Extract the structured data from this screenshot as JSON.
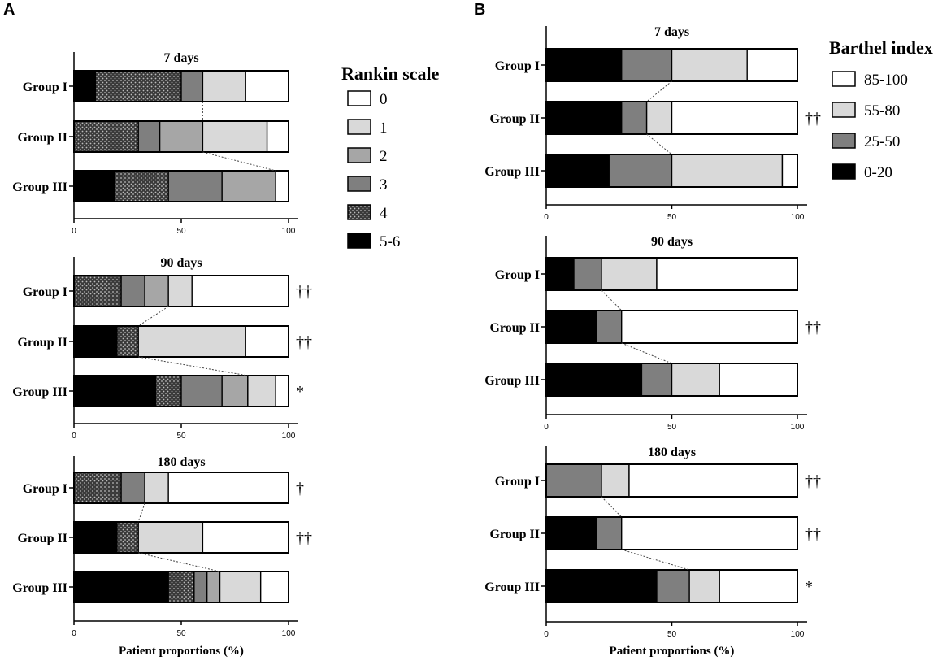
{
  "chart_data": [
    {
      "panel": "A",
      "type": "bar",
      "orientation": "horizontal",
      "stacked": true,
      "legend_title": "Rankin scale",
      "segment_order": [
        "5-6",
        "4",
        "3",
        "2",
        "1",
        "0"
      ],
      "legend_order": [
        "0",
        "1",
        "2",
        "3",
        "4",
        "5-6"
      ],
      "colors": {
        "5-6": "#000000",
        "4": "#3a3a3a",
        "3": "#7f7f7f",
        "2": "#a6a6a6",
        "1": "#d9d9d9",
        "0": "#ffffff"
      },
      "patterns": {
        "4": "dots"
      },
      "xlabel": "Patient proportions (%)",
      "xlim": [
        0,
        100
      ],
      "xticks": [
        "0",
        "50",
        "100"
      ],
      "subplots": [
        {
          "title": "7 days",
          "categories": [
            "Group I",
            "Group II",
            "Group III"
          ],
          "significance": [
            "",
            "",
            ""
          ],
          "series": [
            {
              "name": "5-6",
              "values": [
                10,
                0,
                19
              ]
            },
            {
              "name": "4",
              "values": [
                40,
                30,
                25
              ]
            },
            {
              "name": "3",
              "values": [
                10,
                10,
                25
              ]
            },
            {
              "name": "2",
              "values": [
                0,
                20,
                25
              ]
            },
            {
              "name": "1",
              "values": [
                20,
                30,
                0
              ]
            },
            {
              "name": "0",
              "values": [
                20,
                10,
                6
              ]
            }
          ]
        },
        {
          "title": "90 days",
          "categories": [
            "Group I",
            "Group II",
            "Group III"
          ],
          "significance": [
            "††",
            "††",
            "*"
          ],
          "series": [
            {
              "name": "5-6",
              "values": [
                0,
                20,
                38
              ]
            },
            {
              "name": "4",
              "values": [
                22,
                10,
                12
              ]
            },
            {
              "name": "3",
              "values": [
                11,
                0,
                19
              ]
            },
            {
              "name": "2",
              "values": [
                11,
                0,
                12
              ]
            },
            {
              "name": "1",
              "values": [
                11,
                50,
                13
              ]
            },
            {
              "name": "0",
              "values": [
                45,
                20,
                6
              ]
            }
          ]
        },
        {
          "title": "180 days",
          "categories": [
            "Group I",
            "Group II",
            "Group III"
          ],
          "significance": [
            "†",
            "††",
            ""
          ],
          "series": [
            {
              "name": "5-6",
              "values": [
                0,
                20,
                44
              ]
            },
            {
              "name": "4",
              "values": [
                22,
                10,
                12
              ]
            },
            {
              "name": "3",
              "values": [
                11,
                0,
                6
              ]
            },
            {
              "name": "2",
              "values": [
                0,
                0,
                6
              ]
            },
            {
              "name": "1",
              "values": [
                11,
                30,
                19
              ]
            },
            {
              "name": "0",
              "values": [
                56,
                40,
                13
              ]
            }
          ]
        }
      ]
    },
    {
      "panel": "B",
      "type": "bar",
      "orientation": "horizontal",
      "stacked": true,
      "legend_title": "Barthel index",
      "segment_order": [
        "0-20",
        "25-50",
        "55-80",
        "85-100"
      ],
      "legend_order": [
        "85-100",
        "55-80",
        "25-50",
        "0-20"
      ],
      "colors": {
        "0-20": "#000000",
        "25-50": "#7f7f7f",
        "55-80": "#d9d9d9",
        "85-100": "#ffffff"
      },
      "patterns": {},
      "xlabel": "Patient proportions (%)",
      "xlim": [
        0,
        100
      ],
      "xticks": [
        "0",
        "50",
        "100"
      ],
      "subplots": [
        {
          "title": "7 days",
          "categories": [
            "Group I",
            "Group II",
            "Group III"
          ],
          "significance": [
            "",
            "††",
            ""
          ],
          "series": [
            {
              "name": "0-20",
              "values": [
                30,
                30,
                25
              ]
            },
            {
              "name": "25-50",
              "values": [
                20,
                10,
                25
              ]
            },
            {
              "name": "55-80",
              "values": [
                30,
                10,
                44
              ]
            },
            {
              "name": "85-100",
              "values": [
                20,
                50,
                6
              ]
            }
          ]
        },
        {
          "title": "90 days",
          "categories": [
            "Group I",
            "Group II",
            "Group III"
          ],
          "significance": [
            "",
            "††",
            ""
          ],
          "series": [
            {
              "name": "0-20",
              "values": [
                11,
                20,
                38
              ]
            },
            {
              "name": "25-50",
              "values": [
                11,
                10,
                12
              ]
            },
            {
              "name": "55-80",
              "values": [
                22,
                0,
                19
              ]
            },
            {
              "name": "85-100",
              "values": [
                56,
                70,
                31
              ]
            }
          ]
        },
        {
          "title": "180 days",
          "categories": [
            "Group I",
            "Group II",
            "Group III"
          ],
          "significance": [
            "††",
            "††",
            "*"
          ],
          "series": [
            {
              "name": "0-20",
              "values": [
                0,
                20,
                44
              ]
            },
            {
              "name": "25-50",
              "values": [
                22,
                10,
                13
              ]
            },
            {
              "name": "55-80",
              "values": [
                11,
                0,
                12
              ]
            },
            {
              "name": "85-100",
              "values": [
                67,
                70,
                31
              ]
            }
          ]
        }
      ]
    }
  ]
}
